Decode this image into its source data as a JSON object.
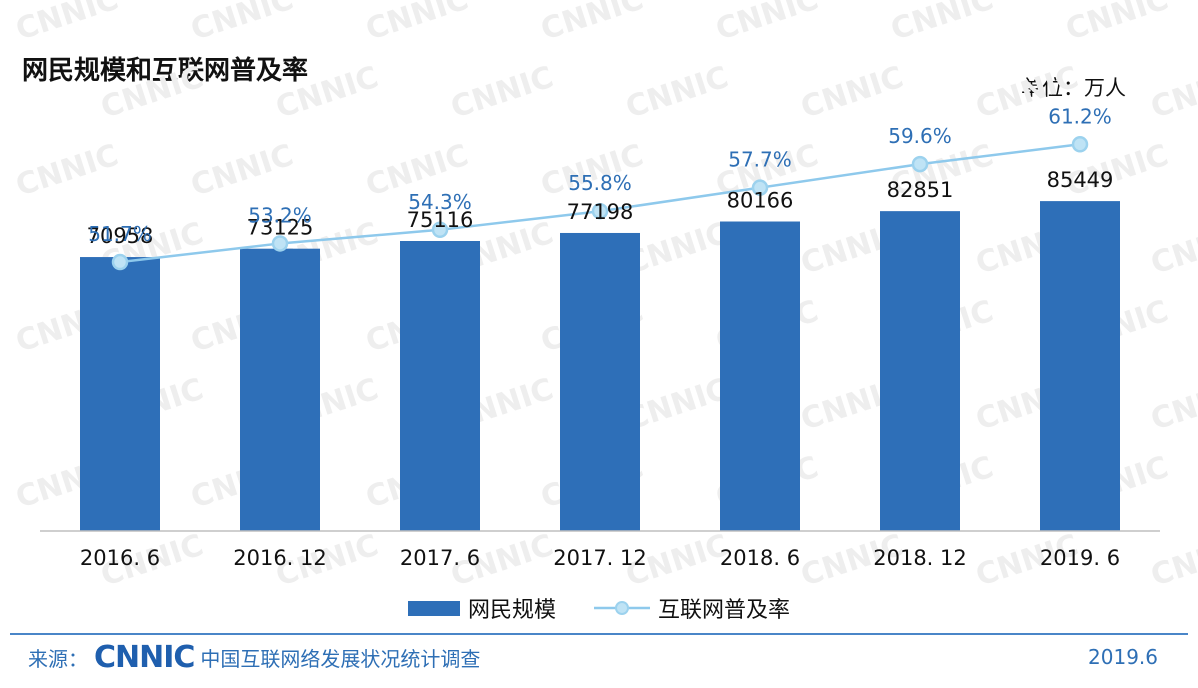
{
  "title": "网民规模和互联网普及率",
  "unit": "单位：万人",
  "footer": {
    "source_label": "来源：",
    "logo_text": "CNNIC",
    "survey_name": "中国互联网络发展状况统计调查",
    "date": "2019.6"
  },
  "watermark": "CNNIC",
  "colors": {
    "bar": "#2e6fb8",
    "line": "#8ec9ec",
    "marker_fill": "#bfe3f5",
    "marker_stroke": "#9cd2ee",
    "pct_label": "#2e6fb5",
    "watermark": "#eeeeee"
  },
  "chart_data": {
    "type": "bar",
    "categories": [
      "2016. 6",
      "2016. 12",
      "2017. 6",
      "2017. 12",
      "2018. 6",
      "2018. 12",
      "2019. 6"
    ],
    "series": [
      {
        "name": "网民规模",
        "type": "bar",
        "values": [
          70958,
          73125,
          75116,
          77198,
          80166,
          82851,
          85449
        ],
        "labels": [
          "70958",
          "73125",
          "75116",
          "77198",
          "80166",
          "82851",
          "85449"
        ]
      },
      {
        "name": "互联网普及率",
        "type": "line",
        "values": [
          51.7,
          53.2,
          54.3,
          55.8,
          57.7,
          59.6,
          61.2
        ],
        "labels": [
          "51.7%",
          "53.2%",
          "54.3%",
          "55.8%",
          "57.7%",
          "59.6%",
          "61.2%"
        ]
      }
    ],
    "bar_axis_range": [
      0,
      122000
    ],
    "line_axis_range": [
      30,
      68
    ],
    "grid": false,
    "legend_position": "bottom"
  }
}
